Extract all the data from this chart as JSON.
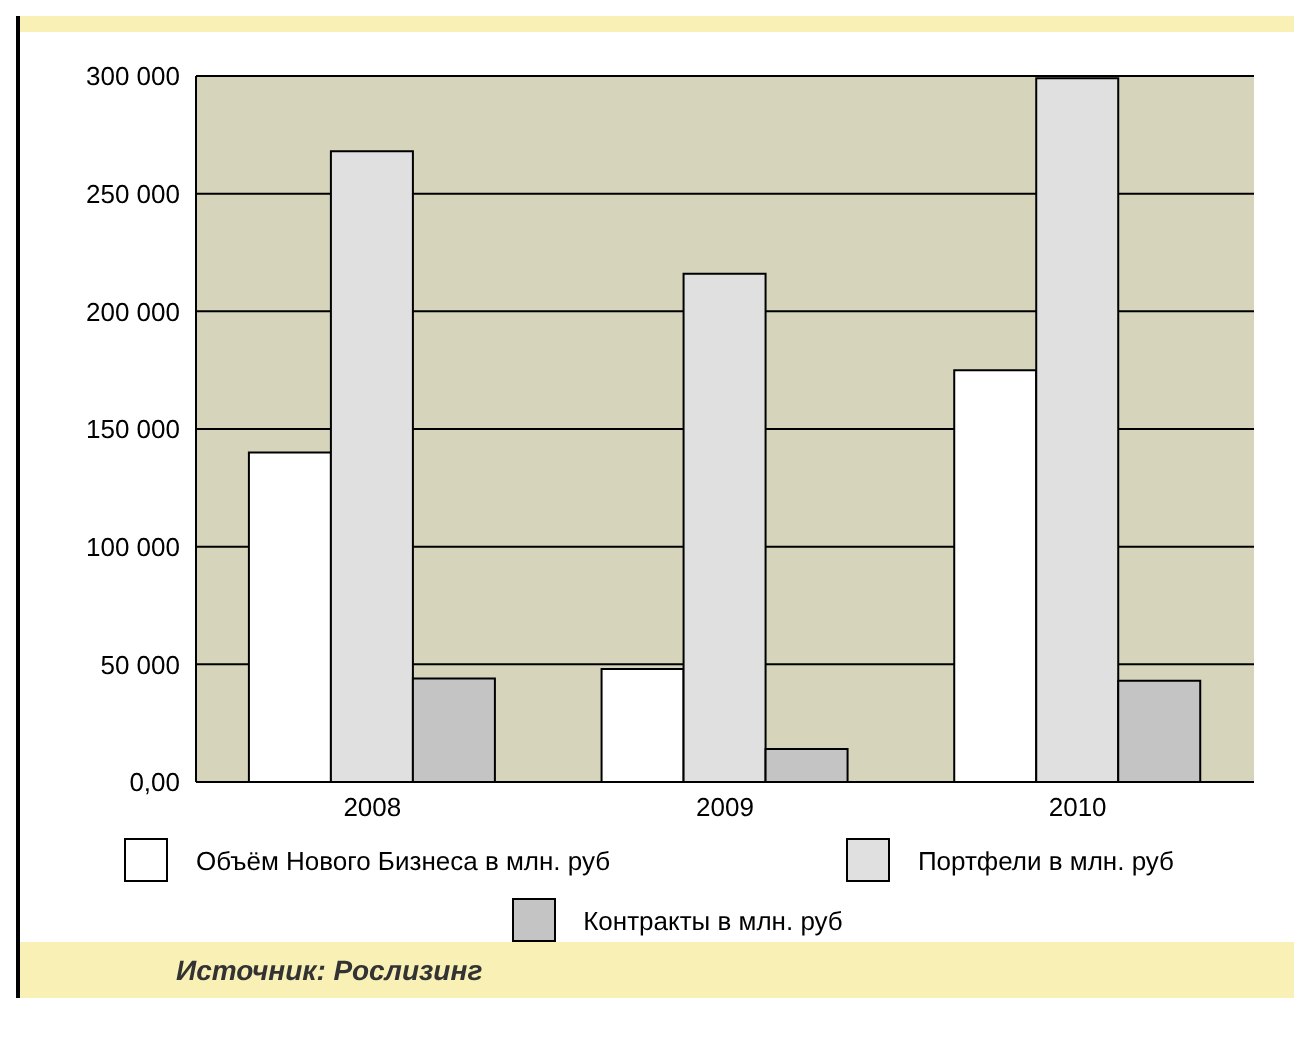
{
  "chart_data": {
    "type": "bar",
    "categories": [
      "2008",
      "2009",
      "2010"
    ],
    "series": [
      {
        "name": "Объём Нового Бизнеса в млн. руб",
        "color": "#ffffff",
        "values": [
          140000,
          48000,
          175000
        ]
      },
      {
        "name": "Портфели в млн. руб",
        "color": "#e0e0e0",
        "values": [
          268000,
          216000,
          299000
        ]
      },
      {
        "name": "Контракты в млн. руб",
        "color": "#c4c4c4",
        "values": [
          44000,
          14000,
          43000
        ]
      }
    ],
    "ylim": [
      0,
      300000
    ],
    "yticks": [
      {
        "value": 0,
        "label": "0,00"
      },
      {
        "value": 50000,
        "label": "50 000"
      },
      {
        "value": 100000,
        "label": "100 000"
      },
      {
        "value": 150000,
        "label": "150 000"
      },
      {
        "value": 200000,
        "label": "200 000"
      },
      {
        "value": 250000,
        "label": "250 000"
      },
      {
        "value": 300000,
        "label": "300 000"
      }
    ],
    "grid": "y",
    "legend": "bottom",
    "annotations": [
      "Источник: Рослизинг"
    ]
  }
}
